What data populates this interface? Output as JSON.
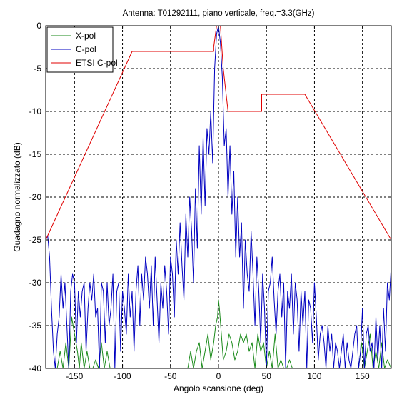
{
  "chart_data": {
    "type": "line",
    "title": "Antenna: T01292111, piano verticale, freq.=3.3(GHz)",
    "xlabel": "Angolo scansione (deg)",
    "ylabel": "Guadagno normalizzato (dB)",
    "xlim": [
      -180,
      180
    ],
    "ylim": [
      -40,
      0
    ],
    "xticks": [
      -150,
      -100,
      -50,
      0,
      50,
      100,
      150
    ],
    "yticks": [
      0,
      -5,
      -10,
      -15,
      -20,
      -25,
      -30,
      -35,
      -40
    ],
    "grid": true,
    "legend": "top-left",
    "series": [
      {
        "name": "X-pol",
        "color": "#1a8a1a",
        "x": [
          -180,
          -176,
          -172,
          -168,
          -165,
          -162,
          -159,
          -156,
          -153,
          -150,
          -147,
          -145,
          -143,
          -140,
          -137,
          -134,
          -131,
          -128,
          -125,
          -122,
          -119,
          -116,
          -113,
          -110,
          -107,
          -104,
          -101,
          -98,
          -95,
          -92,
          -89,
          -86,
          -83,
          -80,
          -77,
          -74,
          -71,
          -68,
          -65,
          -62,
          -59,
          -56,
          -53,
          -50,
          -47,
          -44,
          -41,
          -38,
          -35,
          -32,
          -29,
          -26,
          -23,
          -20,
          -17,
          -14,
          -11,
          -8,
          -5,
          -3,
          -1,
          0,
          1,
          3,
          5,
          8,
          11,
          14,
          17,
          20,
          23,
          26,
          29,
          32,
          35,
          38,
          41,
          44,
          47,
          50,
          53,
          56,
          59,
          62,
          65,
          68,
          71,
          74,
          77,
          80,
          83,
          86,
          89,
          92,
          95,
          98,
          101,
          104,
          107,
          110,
          113,
          116,
          119,
          122,
          125,
          128,
          131,
          134,
          137,
          140,
          143,
          146,
          149,
          152,
          155,
          158,
          161,
          164,
          167,
          170,
          173,
          176,
          180
        ],
        "values": [
          -40,
          -40,
          -40,
          -40,
          -38,
          -40,
          -37,
          -40,
          -34,
          -36,
          -38,
          -40,
          -37,
          -40,
          -38,
          -40,
          -40,
          -39,
          -40,
          -37,
          -40,
          -38,
          -40,
          -40,
          -40,
          -40,
          -40,
          -40,
          -40,
          -40,
          -40,
          -40,
          -40,
          -40,
          -40,
          -40,
          -40,
          -40,
          -40,
          -40,
          -40,
          -40,
          -40,
          -40,
          -40,
          -40,
          -40,
          -40,
          -40,
          -40,
          -38,
          -40,
          -38,
          -37,
          -40,
          -38,
          -36,
          -39,
          -37,
          -35,
          -34,
          -32,
          -33,
          -36,
          -39,
          -38,
          -36,
          -37,
          -39,
          -38,
          -36,
          -37,
          -36,
          -38,
          -37,
          -40,
          -36,
          -38,
          -37,
          -40,
          -38,
          -40,
          -36,
          -40,
          -39,
          -40,
          -40,
          -39,
          -40,
          -40,
          -40,
          -40,
          -40,
          -40,
          -40,
          -40,
          -40,
          -40,
          -40,
          -40,
          -40,
          -40,
          -40,
          -40,
          -40,
          -40,
          -40,
          -40,
          -40,
          -40,
          -40,
          -40,
          -37,
          -40,
          -38,
          -36,
          -40,
          -38,
          -40,
          -37,
          -40,
          -39,
          -40
        ]
      },
      {
        "name": "C-pol",
        "color": "#0000c0",
        "x": [
          -180,
          -178,
          -176,
          -174,
          -172,
          -170,
          -168,
          -166,
          -164,
          -162,
          -160,
          -158,
          -156,
          -154,
          -152,
          -150,
          -148,
          -146,
          -144,
          -142,
          -140,
          -138,
          -136,
          -134,
          -132,
          -130,
          -128,
          -126,
          -124,
          -122,
          -120,
          -118,
          -116,
          -114,
          -112,
          -110,
          -108,
          -106,
          -104,
          -102,
          -100,
          -98,
          -96,
          -94,
          -92,
          -90,
          -88,
          -86,
          -84,
          -82,
          -80,
          -78,
          -76,
          -74,
          -72,
          -70,
          -68,
          -66,
          -64,
          -62,
          -60,
          -58,
          -56,
          -54,
          -52,
          -50,
          -48,
          -46,
          -44,
          -42,
          -40,
          -38,
          -36,
          -34,
          -32,
          -30,
          -28,
          -26,
          -24,
          -22,
          -20,
          -18,
          -16,
          -14,
          -12,
          -10,
          -8,
          -6,
          -4,
          -2,
          0,
          2,
          4,
          6,
          8,
          10,
          12,
          14,
          16,
          18,
          20,
          22,
          24,
          26,
          28,
          30,
          32,
          34,
          36,
          38,
          40,
          42,
          44,
          46,
          48,
          50,
          52,
          54,
          56,
          58,
          60,
          62,
          64,
          66,
          68,
          70,
          72,
          74,
          76,
          78,
          80,
          82,
          84,
          86,
          88,
          90,
          92,
          94,
          96,
          98,
          100,
          102,
          104,
          106,
          108,
          110,
          112,
          114,
          116,
          118,
          120,
          122,
          124,
          126,
          128,
          130,
          132,
          134,
          136,
          138,
          140,
          142,
          144,
          146,
          148,
          150,
          152,
          154,
          156,
          158,
          160,
          162,
          164,
          166,
          168,
          170,
          172,
          174,
          176,
          178,
          180
        ],
        "values": [
          -25,
          -24.5,
          -27,
          -33,
          -38,
          -40,
          -36,
          -34,
          -29,
          -33,
          -30,
          -35,
          -40,
          -31,
          -29,
          -30,
          -37,
          -31,
          -34,
          -31,
          -30,
          -38,
          -33,
          -30,
          -32,
          -29,
          -34,
          -33,
          -40,
          -30,
          -31,
          -37,
          -30,
          -35,
          -33,
          -29,
          -40,
          -31,
          -30,
          -38,
          -31,
          -33,
          -36,
          -29,
          -34,
          -31,
          -38,
          -31,
          -28,
          -35,
          -29,
          -32,
          -27,
          -29,
          -33,
          -28,
          -35,
          -27,
          -32,
          -37,
          -30,
          -33,
          -28,
          -31,
          -36,
          -27,
          -29,
          -34,
          -25,
          -29,
          -23,
          -28,
          -32,
          -22,
          -27,
          -20,
          -24,
          -30,
          -19,
          -26,
          -14,
          -22,
          -13,
          -21,
          -12,
          -15,
          -10,
          -16,
          -5,
          -1,
          0,
          -2,
          -6,
          -14,
          -12,
          -20,
          -14,
          -22,
          -17,
          -27,
          -20,
          -27,
          -23,
          -33,
          -25,
          -29,
          -31,
          -24,
          -29,
          -35,
          -27,
          -31,
          -37,
          -29,
          -33,
          -40,
          -31,
          -30,
          -27,
          -32,
          -36,
          -31,
          -29,
          -34,
          -30,
          -40,
          -31,
          -33,
          -29,
          -36,
          -30,
          -32,
          -38,
          -31,
          -35,
          -31,
          -40,
          -32,
          -33,
          -37,
          -30,
          -34,
          -39,
          -36,
          -35,
          -37,
          -40,
          -35,
          -38,
          -36,
          -40,
          -37,
          -38,
          -40,
          -38,
          -36,
          -40,
          -37,
          -39,
          -40,
          -38,
          -36,
          -35,
          -40,
          -38,
          -33,
          -40,
          -36,
          -35,
          -38,
          -37,
          -40,
          -34,
          -39,
          -35,
          -40,
          -33,
          -38,
          -30,
          -32,
          -28
        ]
      },
      {
        "name": "ETSI C-pol",
        "color": "#e00000",
        "x": [
          -180,
          -90,
          -70,
          -5,
          -5,
          -2,
          2,
          5,
          10,
          45,
          45,
          90,
          180
        ],
        "values": [
          -25,
          -3,
          -3,
          -3,
          -2.5,
          0,
          0,
          -5,
          -10,
          -10,
          -8,
          -8,
          -25
        ]
      }
    ]
  }
}
